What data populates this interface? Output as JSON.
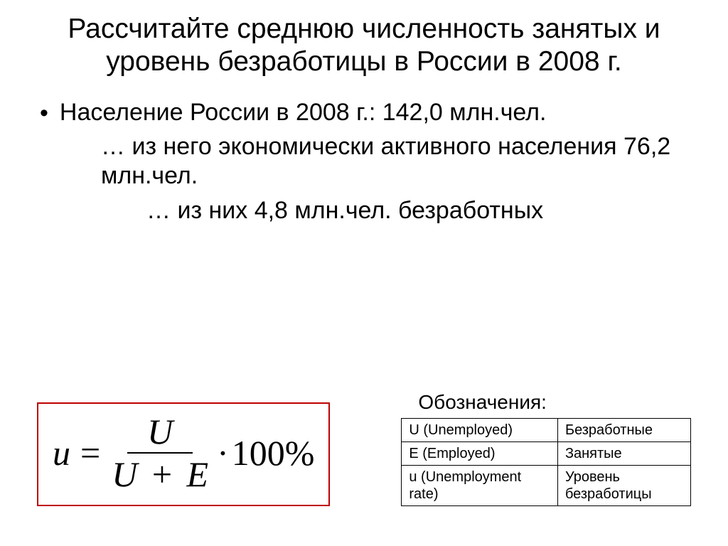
{
  "title": "Рассчитайте среднюю численность занятых и уровень безработицы в России в 2008 г.",
  "bullet": {
    "line1": "Население России в 2008 г.: 142,0 млн.чел.",
    "line2": "… из него экономически активного населения 76,2 млн.чел.",
    "line3": "… из них 4,8 млн.чел. безработных"
  },
  "formula": {
    "lhs": "u",
    "eq": "=",
    "num": "U",
    "den_left": "U",
    "den_plus": "+",
    "den_right": "E",
    "mult_dot": "·",
    "hundred": "100%",
    "border_color": "#c00000"
  },
  "legend": {
    "header": "Обозначения:",
    "rows": [
      {
        "symbol": "U (Unemployed)",
        "meaning": "Безработные"
      },
      {
        "symbol": "E (Employed)",
        "meaning": "Занятые"
      },
      {
        "symbol": "u (Unemployment rate)",
        "meaning": "Уровень безработицы"
      }
    ]
  },
  "colors": {
    "background": "#ffffff",
    "text": "#000000",
    "formula_border": "#c00000",
    "table_border": "#000000"
  },
  "typography": {
    "title_fontsize": 39,
    "body_fontsize": 34,
    "formula_fontsize": 50,
    "legend_title_fontsize": 28,
    "legend_cell_fontsize": 20,
    "body_font": "Arial",
    "formula_font": "Times New Roman"
  }
}
